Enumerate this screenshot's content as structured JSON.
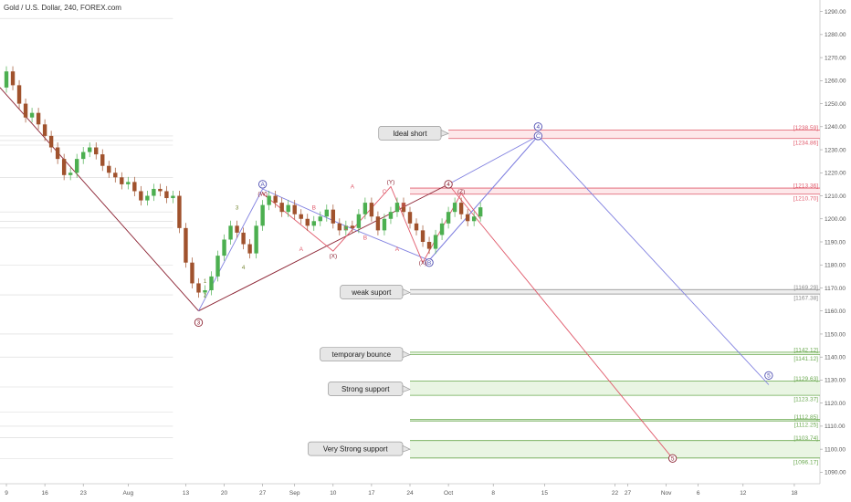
{
  "chart_data": {
    "type": "candlestick",
    "title": "Gold / U.S. Dollar, 240, FOREX.com",
    "ylim": [
      1085,
      1295
    ],
    "yticks": [
      1090,
      1100,
      1110,
      1120,
      1130,
      1140,
      1150,
      1160,
      1170,
      1180,
      1190,
      1200,
      1210,
      1220,
      1230,
      1240,
      1250,
      1260,
      1270,
      1280,
      1290
    ],
    "xlim": [
      0,
      128
    ],
    "xticks": [
      {
        "x": 1,
        "label": "9"
      },
      {
        "x": 7,
        "label": "16"
      },
      {
        "x": 13,
        "label": "23"
      },
      {
        "x": 20,
        "label": "Aug"
      },
      {
        "x": 29,
        "label": "13"
      },
      {
        "x": 35,
        "label": "20"
      },
      {
        "x": 41,
        "label": "27"
      },
      {
        "x": 46,
        "label": "Sep"
      },
      {
        "x": 52,
        "label": "10"
      },
      {
        "x": 58,
        "label": "17"
      },
      {
        "x": 64,
        "label": "24"
      },
      {
        "x": 70,
        "label": "Oct"
      },
      {
        "x": 77,
        "label": "8"
      },
      {
        "x": 85,
        "label": "15"
      },
      {
        "x": 96,
        "label": "22"
      },
      {
        "x": 98,
        "label": "27"
      },
      {
        "x": 104,
        "label": "Nov"
      },
      {
        "x": 109,
        "label": "6"
      },
      {
        "x": 116,
        "label": "12"
      },
      {
        "x": 124,
        "label": "18"
      }
    ],
    "price_path": [
      [
        0,
        1257
      ],
      [
        1,
        1264
      ],
      [
        2,
        1258
      ],
      [
        3,
        1250
      ],
      [
        4,
        1244
      ],
      [
        5,
        1246
      ],
      [
        6,
        1241
      ],
      [
        7,
        1236
      ],
      [
        8,
        1231
      ],
      [
        9,
        1226
      ],
      [
        10,
        1219
      ],
      [
        11,
        1220
      ],
      [
        12,
        1226
      ],
      [
        13,
        1229
      ],
      [
        14,
        1231
      ],
      [
        15,
        1228
      ],
      [
        16,
        1223
      ],
      [
        17,
        1220
      ],
      [
        18,
        1218
      ],
      [
        19,
        1215
      ],
      [
        20,
        1216
      ],
      [
        21,
        1212
      ],
      [
        22,
        1208
      ],
      [
        23,
        1210
      ],
      [
        24,
        1213
      ],
      [
        25,
        1212
      ],
      [
        26,
        1209
      ],
      [
        27,
        1210
      ],
      [
        28,
        1196
      ],
      [
        29,
        1181
      ],
      [
        30,
        1172
      ],
      [
        31,
        1168
      ],
      [
        32,
        1169
      ],
      [
        33,
        1175
      ],
      [
        34,
        1184
      ],
      [
        35,
        1191
      ],
      [
        36,
        1197
      ],
      [
        37,
        1194
      ],
      [
        38,
        1189
      ],
      [
        39,
        1185
      ],
      [
        40,
        1197
      ],
      [
        41,
        1206
      ],
      [
        42,
        1210
      ],
      [
        43,
        1207
      ],
      [
        44,
        1203
      ],
      [
        45,
        1206
      ],
      [
        46,
        1202
      ],
      [
        47,
        1200
      ],
      [
        48,
        1197
      ],
      [
        49,
        1199
      ],
      [
        50,
        1201
      ],
      [
        51,
        1204
      ],
      [
        52,
        1198
      ],
      [
        53,
        1195
      ],
      [
        54,
        1197
      ],
      [
        55,
        1196
      ],
      [
        56,
        1202
      ],
      [
        57,
        1207
      ],
      [
        58,
        1201
      ],
      [
        59,
        1195
      ],
      [
        60,
        1200
      ],
      [
        61,
        1203
      ],
      [
        62,
        1207
      ],
      [
        63,
        1203
      ],
      [
        64,
        1198
      ],
      [
        65,
        1195
      ],
      [
        66,
        1190
      ],
      [
        67,
        1187
      ],
      [
        68,
        1193
      ],
      [
        69,
        1198
      ],
      [
        70,
        1203
      ],
      [
        71,
        1207
      ],
      [
        72,
        1202
      ],
      [
        73,
        1199
      ],
      [
        74,
        1201
      ],
      [
        75,
        1205
      ]
    ],
    "levels": [
      {
        "low": 1234.86,
        "high": 1238.59,
        "labels": [
          "[1238.59]",
          "[1234.86]"
        ],
        "color": "#e05a6b",
        "fill": "#fde8ea",
        "x_start": 70
      },
      {
        "low": 1210.7,
        "high": 1213.36,
        "labels": [
          "[1213.36]",
          "[1210.70]"
        ],
        "color": "#e05a6b",
        "fill": "#fde8ea",
        "x_start": 64
      },
      {
        "low": 1167.38,
        "high": 1169.29,
        "labels": [
          "[1169.29]",
          "[1167.38]"
        ],
        "color": "#888888",
        "fill": "#eeeeee",
        "x_start": 64
      },
      {
        "low": 1141.12,
        "high": 1142.12,
        "labels": [
          "[1142.12]",
          "[1141.12]"
        ],
        "color": "#6aa84f",
        "fill": "#e9f5e3",
        "x_start": 64
      },
      {
        "low": 1123.37,
        "high": 1129.63,
        "labels": [
          "[1129.63]",
          "[1123.37]"
        ],
        "color": "#6aa84f",
        "fill": "#e9f5e3",
        "x_start": 64
      },
      {
        "low": 1112.25,
        "high": 1112.85,
        "labels": [
          "[1112.85]",
          "[1112.25]"
        ],
        "color": "#6aa84f",
        "fill": "#e9f5e3",
        "x_start": 64
      },
      {
        "low": 1096.17,
        "high": 1103.74,
        "labels": [
          "[1103.74]",
          "[1096.17]"
        ],
        "color": "#6aa84f",
        "fill": "#e9f5e3",
        "x_start": 64
      }
    ],
    "callouts": [
      {
        "text": "Ideal short",
        "price": 1237,
        "x_tip": 70
      },
      {
        "text": "weak suport",
        "price": 1168,
        "x_tip": 64
      },
      {
        "text": "temporary bounce",
        "price": 1141,
        "x_tip": 64
      },
      {
        "text": "Strong support",
        "price": 1126,
        "x_tip": 64
      },
      {
        "text": "Very Strong support",
        "price": 1100,
        "x_tip": 64
      }
    ],
    "wave_labels": [
      {
        "text": "3",
        "x": 31,
        "price": 1155,
        "circled": true,
        "color": "#8b2232"
      },
      {
        "text": "A",
        "x": 41,
        "price": 1215,
        "circled": true,
        "color": "#4a4ab0"
      },
      {
        "text": "B",
        "x": 67,
        "price": 1181,
        "circled": true,
        "color": "#4a4ab0"
      },
      {
        "text": "C",
        "x": 84,
        "price": 1236,
        "circled": true,
        "color": "#4a4ab0"
      },
      {
        "text": "4",
        "x": 84,
        "price": 1240,
        "circled": true,
        "color": "#4a4ab0"
      },
      {
        "text": "4",
        "x": 70,
        "price": 1215,
        "circled": true,
        "color": "#8b2232"
      },
      {
        "text": "5",
        "x": 120,
        "price": 1132,
        "circled": true,
        "color": "#4a4ab0"
      },
      {
        "text": "5",
        "x": 105,
        "price": 1096,
        "circled": true,
        "color": "#8b2232"
      },
      {
        "text": "(W)",
        "x": 41,
        "price": 1211,
        "circled": false,
        "color": "#8b2232"
      },
      {
        "text": "(X)",
        "x": 52,
        "price": 1184,
        "circled": false,
        "color": "#8b2232"
      },
      {
        "text": "(Y)",
        "x": 61,
        "price": 1216,
        "circled": false,
        "color": "#8b2232"
      },
      {
        "text": "(X)",
        "x": 66,
        "price": 1181,
        "circled": false,
        "color": "#8b2232"
      },
      {
        "text": "(Z)",
        "x": 72,
        "price": 1212,
        "circled": false,
        "color": "#8b2232"
      },
      {
        "text": "1",
        "x": 32,
        "price": 1173,
        "circled": false,
        "color": "#7a8a3a"
      },
      {
        "text": "2",
        "x": 32,
        "price": 1167,
        "circled": false,
        "color": "#7a8a3a"
      },
      {
        "text": "3",
        "x": 37,
        "price": 1205,
        "circled": false,
        "color": "#7a8a3a"
      },
      {
        "text": "4",
        "x": 38,
        "price": 1179,
        "circled": false,
        "color": "#7a8a3a"
      },
      {
        "text": "A",
        "x": 47,
        "price": 1187,
        "circled": false,
        "color": "#e05a6b"
      },
      {
        "text": "B",
        "x": 49,
        "price": 1205,
        "circled": false,
        "color": "#e05a6b"
      },
      {
        "text": "C",
        "x": 54,
        "price": 1196,
        "circled": false,
        "color": "#e05a6b"
      },
      {
        "text": "A",
        "x": 55,
        "price": 1214,
        "circled": false,
        "color": "#e05a6b"
      },
      {
        "text": "B",
        "x": 57,
        "price": 1192,
        "circled": false,
        "color": "#e05a6b"
      },
      {
        "text": "C",
        "x": 60,
        "price": 1212,
        "circled": false,
        "color": "#e05a6b"
      },
      {
        "text": "B",
        "x": 63,
        "price": 1206,
        "circled": false,
        "color": "#e05a6b"
      },
      {
        "text": "A",
        "x": 62,
        "price": 1187,
        "circled": false,
        "color": "#e05a6b"
      }
    ],
    "wave_lines": [
      {
        "points": [
          [
            0,
            1257
          ],
          [
            31,
            1160
          ]
        ],
        "color": "#8b2232"
      },
      {
        "points": [
          [
            31,
            1160
          ],
          [
            70,
            1215
          ]
        ],
        "color": "#8b2232"
      },
      {
        "points": [
          [
            70,
            1215
          ],
          [
            105,
            1096
          ]
        ],
        "color": "#e05a6b"
      },
      {
        "points": [
          [
            67,
            1182
          ],
          [
            84,
            1236
          ]
        ],
        "color": "#8080e0"
      },
      {
        "points": [
          [
            67,
            1182
          ],
          [
            84,
            1236
          ]
        ],
        "color": "#8080e0"
      },
      {
        "points": [
          [
            84,
            1236
          ],
          [
            120,
            1128
          ]
        ],
        "color": "#8080e0"
      },
      {
        "points": [
          [
            41,
            1213
          ],
          [
            53,
            1198
          ],
          [
            67,
            1182
          ]
        ],
        "color": "#8080e0"
      },
      {
        "points": [
          [
            31,
            1160
          ],
          [
            41,
            1213
          ]
        ],
        "color": "#8080e0"
      },
      {
        "points": [
          [
            70,
            1215
          ],
          [
            84,
            1236
          ]
        ],
        "color": "#8080e0"
      },
      {
        "points": [
          [
            41,
            1211
          ],
          [
            52,
            1186
          ],
          [
            61,
            1214
          ],
          [
            66,
            1181
          ],
          [
            72,
            1211
          ],
          [
            75,
            1200
          ]
        ],
        "color": "#e05a6b"
      }
    ],
    "history_lines": [
      1287,
      1236,
      1234,
      1232,
      1218,
      1203,
      1199,
      1196,
      1180,
      1167,
      1150,
      1140,
      1127,
      1116,
      1110,
      1105,
      1096
    ]
  }
}
